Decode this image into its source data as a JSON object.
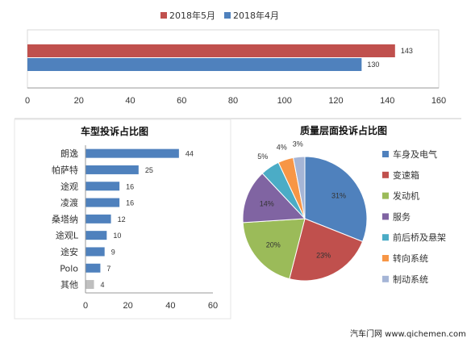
{
  "chart_data": [
    {
      "type": "bar",
      "orientation": "horizontal",
      "categories": [
        ""
      ],
      "series": [
        {
          "name": "2018年5月",
          "values": [
            143
          ],
          "color": "#c0504d"
        },
        {
          "name": "2018年4月",
          "values": [
            130
          ],
          "color": "#4f81bd"
        }
      ],
      "xlim": [
        0,
        160
      ],
      "xticks": [
        "0",
        "20",
        "40",
        "60",
        "80",
        "100",
        "120",
        "140",
        "160"
      ],
      "legend": "top",
      "grid": false
    },
    {
      "type": "bar",
      "orientation": "horizontal",
      "title": "车型投诉占比图",
      "categories": [
        "朗逸",
        "帕萨特",
        "途观",
        "凌渡",
        "桑塔纳",
        "途观L",
        "途安",
        "Polo",
        "其他"
      ],
      "values": [
        44,
        25,
        16,
        16,
        12,
        10,
        9,
        7,
        4
      ],
      "colors": [
        "#4f81bd",
        "#4f81bd",
        "#4f81bd",
        "#4f81bd",
        "#4f81bd",
        "#4f81bd",
        "#4f81bd",
        "#4f81bd",
        "#bfbfbf"
      ],
      "xlim": [
        0,
        60
      ],
      "xticks": [
        "0",
        "20",
        "40",
        "60"
      ],
      "grid": false
    },
    {
      "type": "pie",
      "title": "质量层面投诉占比图",
      "labels": [
        "车身及电气",
        "变速箱",
        "发动机",
        "服务",
        "前后桥及悬架",
        "转向系统",
        "制动系统"
      ],
      "values": [
        31,
        23,
        20,
        14,
        5,
        4,
        3
      ],
      "value_labels": [
        "31%",
        "23%",
        "20%",
        "14%",
        "5%",
        "4%",
        "3%"
      ],
      "colors": [
        "#4f81bd",
        "#c0504d",
        "#9bbb59",
        "#8064a2",
        "#4bacc6",
        "#f79646",
        "#a5b5d6"
      ],
      "legend": "right"
    }
  ],
  "footer": "汽车门网 www.qichemen.com"
}
